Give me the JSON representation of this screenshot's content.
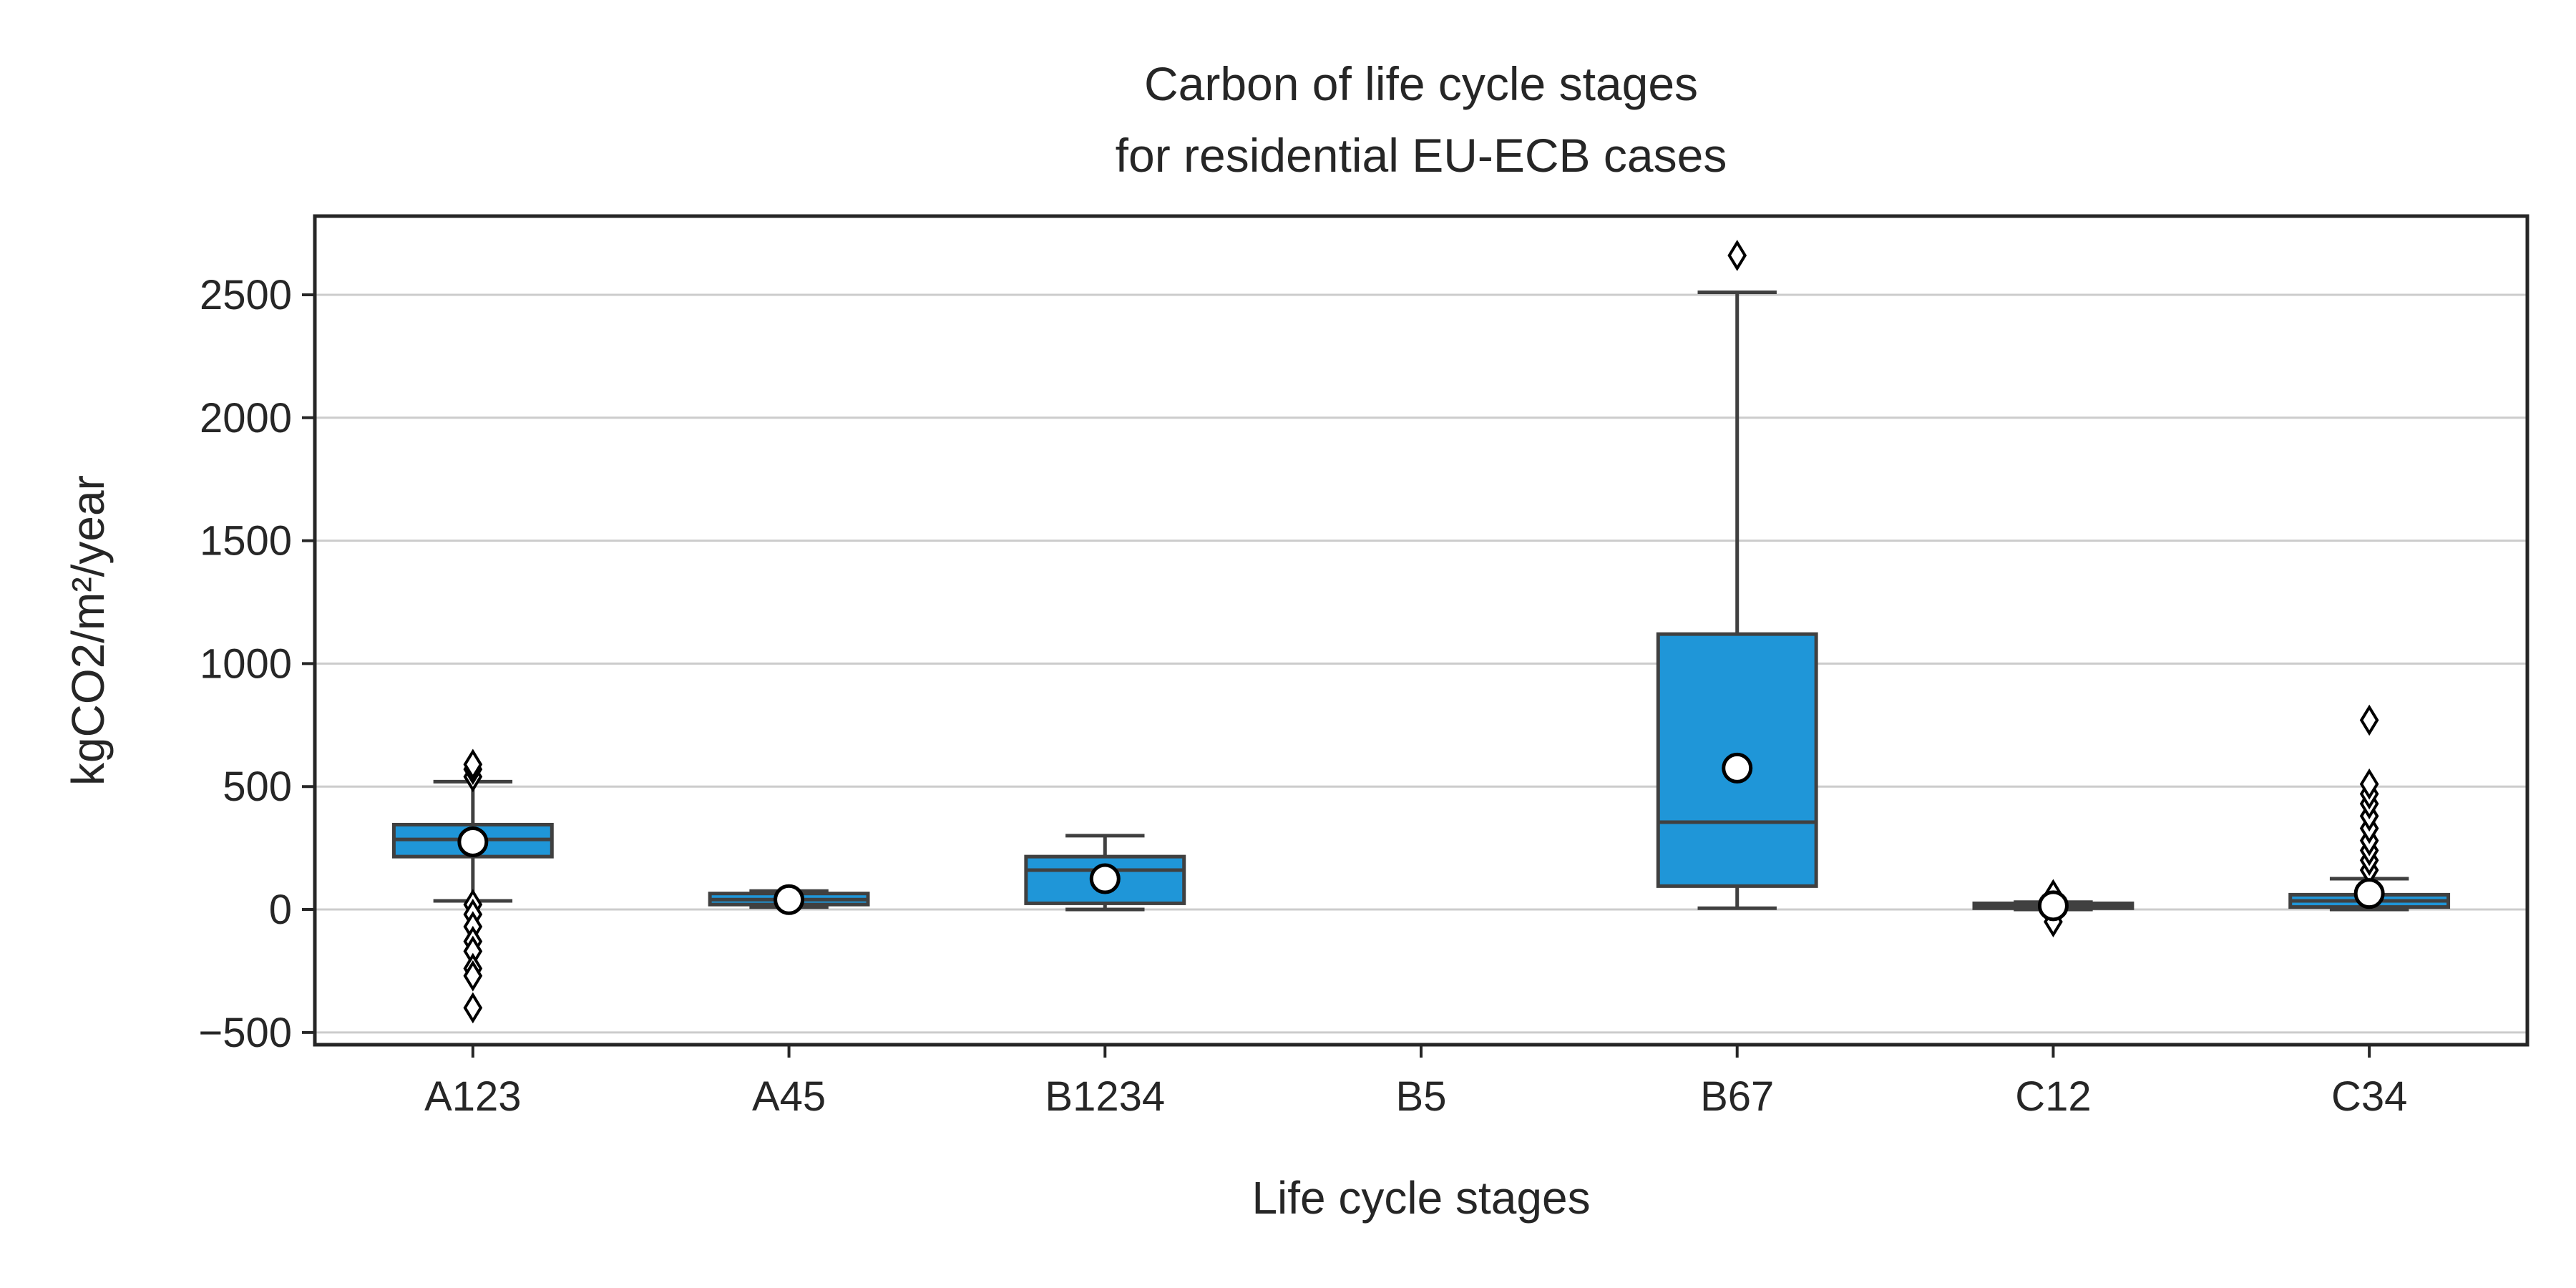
{
  "chart_data": {
    "type": "box",
    "title_line1": "Carbon of life cycle stages",
    "title_line2": "for residential EU-ECB cases",
    "xlabel": "Life cycle stages",
    "ylabel": "kgCO2/m²/year",
    "ylim": [
      -550,
      2820
    ],
    "yticks": [
      -500,
      0,
      500,
      1000,
      1500,
      2000,
      2500
    ],
    "ytick_labels": [
      "−500",
      "0",
      "500",
      "1000",
      "1500",
      "2000",
      "2500"
    ],
    "grid": "horizontal",
    "colors": {
      "box": "#1f96d8",
      "edge": "#404040",
      "frame": "#262626",
      "grid": "#cccccc",
      "mean_fill": "#ffffff",
      "mean_edge": "#000000"
    },
    "categories": [
      "A123",
      "A45",
      "B1234",
      "B5",
      "B67",
      "C12",
      "C34"
    ],
    "boxes": [
      {
        "category": "A123",
        "whisker_low": 35,
        "q1": 215,
        "median": 285,
        "q3": 345,
        "whisker_high": 520,
        "mean": 275,
        "outliers": [
          540,
          570,
          590,
          20,
          -20,
          -70,
          -130,
          -170,
          -240,
          -270,
          -400
        ]
      },
      {
        "category": "A45",
        "whisker_low": 10,
        "q1": 20,
        "median": 40,
        "q3": 65,
        "whisker_high": 75,
        "mean": 40,
        "outliers": []
      },
      {
        "category": "B1234",
        "whisker_low": 0,
        "q1": 25,
        "median": 160,
        "q3": 215,
        "whisker_high": 300,
        "mean": 125,
        "outliers": []
      },
      {
        "category": "B5",
        "empty": true
      },
      {
        "category": "B67",
        "whisker_low": 5,
        "q1": 95,
        "median": 355,
        "q3": 1120,
        "whisker_high": 2510,
        "mean": 575,
        "outliers": [
          2660
        ]
      },
      {
        "category": "C12",
        "whisker_low": 0,
        "q1": 5,
        "median": 15,
        "q3": 25,
        "whisker_high": 30,
        "mean": 15,
        "outliers": [
          60,
          -50
        ]
      },
      {
        "category": "C34",
        "whisker_low": 0,
        "q1": 10,
        "median": 35,
        "q3": 60,
        "whisker_high": 125,
        "mean": 65,
        "outliers": [
          160,
          200,
          240,
          280,
          330,
          380,
          430,
          470,
          510,
          770
        ]
      }
    ]
  }
}
